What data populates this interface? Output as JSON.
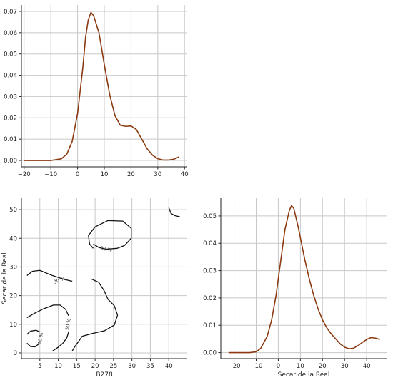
{
  "chart_data": [
    {
      "id": "top-left-kde",
      "type": "line",
      "title": "",
      "xlabel": "",
      "ylabel": "",
      "xlim": [
        -21,
        41
      ],
      "ylim": [
        -0.003,
        0.073
      ],
      "xticks": [
        -20,
        -10,
        0,
        10,
        20,
        30,
        40
      ],
      "yticks": [
        0.0,
        0.01,
        0.02,
        0.03,
        0.04,
        0.05,
        0.06,
        0.07
      ],
      "ytick_labels": [
        "0.00",
        "0.01",
        "0.02",
        "0.03",
        "0.04",
        "0.05",
        "0.06",
        "0.07"
      ],
      "grid": true,
      "color": "#8B3A10",
      "series": [
        {
          "x": [
            -20,
            -10,
            -6,
            -4,
            -2,
            0,
            2,
            3,
            4,
            5,
            6,
            8,
            10,
            12,
            14,
            16,
            18,
            20,
            22,
            24,
            26,
            28,
            30,
            32,
            34,
            36,
            38
          ],
          "y": [
            0.0,
            0.0,
            0.0008,
            0.003,
            0.009,
            0.022,
            0.044,
            0.058,
            0.066,
            0.0695,
            0.068,
            0.06,
            0.045,
            0.031,
            0.021,
            0.0165,
            0.016,
            0.0162,
            0.0145,
            0.01,
            0.0055,
            0.0025,
            0.0008,
            0.0002,
            0.0002,
            0.0006,
            0.0017
          ]
        }
      ]
    },
    {
      "id": "bottom-left-contour",
      "type": "contour",
      "title": "",
      "xlabel": "B278",
      "ylabel": "Secar de la Real",
      "xlim": [
        0,
        45
      ],
      "ylim": [
        -2,
        54
      ],
      "xticks": [
        5,
        10,
        15,
        20,
        25,
        30,
        35,
        40
      ],
      "yticks": [
        0,
        10,
        20,
        30,
        40,
        50
      ],
      "grid": true,
      "color": "#111111",
      "contour_labels": [
        "10 %",
        "50 %",
        "90 %",
        "90 %"
      ],
      "contours": [
        {
          "level": "90 %",
          "points": [
            [
              19.5,
              36.5
            ],
            [
              18.5,
              38
            ],
            [
              18.2,
              41
            ],
            [
              20,
              44
            ],
            [
              23.5,
              46.2
            ],
            [
              27.5,
              46
            ],
            [
              29.8,
              43.5
            ],
            [
              29.8,
              40
            ],
            [
              28,
              37.5
            ],
            [
              26,
              36.5
            ],
            [
              23,
              36.2
            ],
            [
              21,
              36.8
            ],
            [
              19.5,
              38
            ]
          ]
        },
        {
          "level": "90 %",
          "points": [
            [
              1.5,
              27
            ],
            [
              3,
              28.5
            ],
            [
              5,
              28.8
            ],
            [
              8,
              27.2
            ],
            [
              11.5,
              25.7
            ],
            [
              13.8,
              25
            ]
          ]
        },
        {
          "level": "50 %",
          "points": [
            [
              19,
              25.8
            ],
            [
              21,
              24.6
            ],
            [
              22.5,
              21.6
            ],
            [
              23.5,
              18.7
            ],
            [
              25.2,
              16.5
            ],
            [
              26.1,
              13.2
            ],
            [
              25.2,
              9.7
            ],
            [
              22.5,
              7.7
            ],
            [
              19,
              6.7
            ],
            [
              16.5,
              5.8
            ],
            [
              14.3,
              1.8
            ],
            [
              13.8,
              0.7
            ]
          ]
        },
        {
          "level": "50 %",
          "points": [
            [
              1.5,
              12.3
            ],
            [
              3.5,
              13.8
            ],
            [
              6,
              15.4
            ],
            [
              8.7,
              16.7
            ],
            [
              10.5,
              16.7
            ],
            [
              12,
              15.2
            ],
            [
              12.8,
              13
            ]
          ]
        },
        {
          "level": "10 %",
          "points": [
            [
              1.5,
              6.5
            ],
            [
              2.5,
              7.6
            ],
            [
              4,
              7.9
            ],
            [
              5,
              7.3
            ]
          ]
        },
        {
          "level": "10 %",
          "points": [
            [
              1.5,
              3.4
            ],
            [
              2.5,
              2.2
            ],
            [
              3.7,
              2.1
            ],
            [
              4.6,
              3
            ]
          ]
        },
        {
          "level": "50 %",
          "points": [
            [
              8.5,
              0.7
            ],
            [
              10,
              2
            ],
            [
              11.2,
              3.3
            ],
            [
              12.3,
              5.2
            ],
            [
              12.9,
              7.6
            ]
          ]
        },
        {
          "level": "",
          "points": [
            [
              40,
              50.7
            ],
            [
              40.6,
              48.7
            ],
            [
              41.7,
              47.9
            ],
            [
              43,
              47.5
            ]
          ]
        }
      ]
    },
    {
      "id": "bottom-right-kde",
      "type": "line",
      "title": "",
      "xlabel": "Secar de la Real",
      "ylabel": "",
      "xlim": [
        -26,
        49
      ],
      "ylim": [
        -0.0022,
        0.0565
      ],
      "xticks": [
        -20,
        -10,
        0,
        10,
        20,
        30,
        40
      ],
      "yticks": [
        0.0,
        0.01,
        0.02,
        0.03,
        0.04,
        0.05
      ],
      "ytick_labels": [
        "0.00",
        "0.01",
        "0.02",
        "0.03",
        "0.04",
        "0.05"
      ],
      "grid": true,
      "color": "#8B3A10",
      "series": [
        {
          "x": [
            -22.5,
            -13,
            -10,
            -8,
            -5,
            -3,
            -1,
            1,
            3,
            5,
            6,
            7,
            9,
            12,
            14,
            16,
            18,
            20,
            22,
            24,
            26,
            28,
            30,
            32,
            34,
            36,
            38,
            40,
            42,
            44,
            46
          ],
          "y": [
            0.0,
            0.0,
            0.0003,
            0.0015,
            0.006,
            0.012,
            0.021,
            0.033,
            0.045,
            0.052,
            0.0538,
            0.0528,
            0.046,
            0.034,
            0.027,
            0.021,
            0.016,
            0.012,
            0.009,
            0.0068,
            0.005,
            0.0032,
            0.002,
            0.0014,
            0.0016,
            0.0025,
            0.0037,
            0.0048,
            0.0055,
            0.0053,
            0.0048
          ]
        }
      ]
    }
  ]
}
